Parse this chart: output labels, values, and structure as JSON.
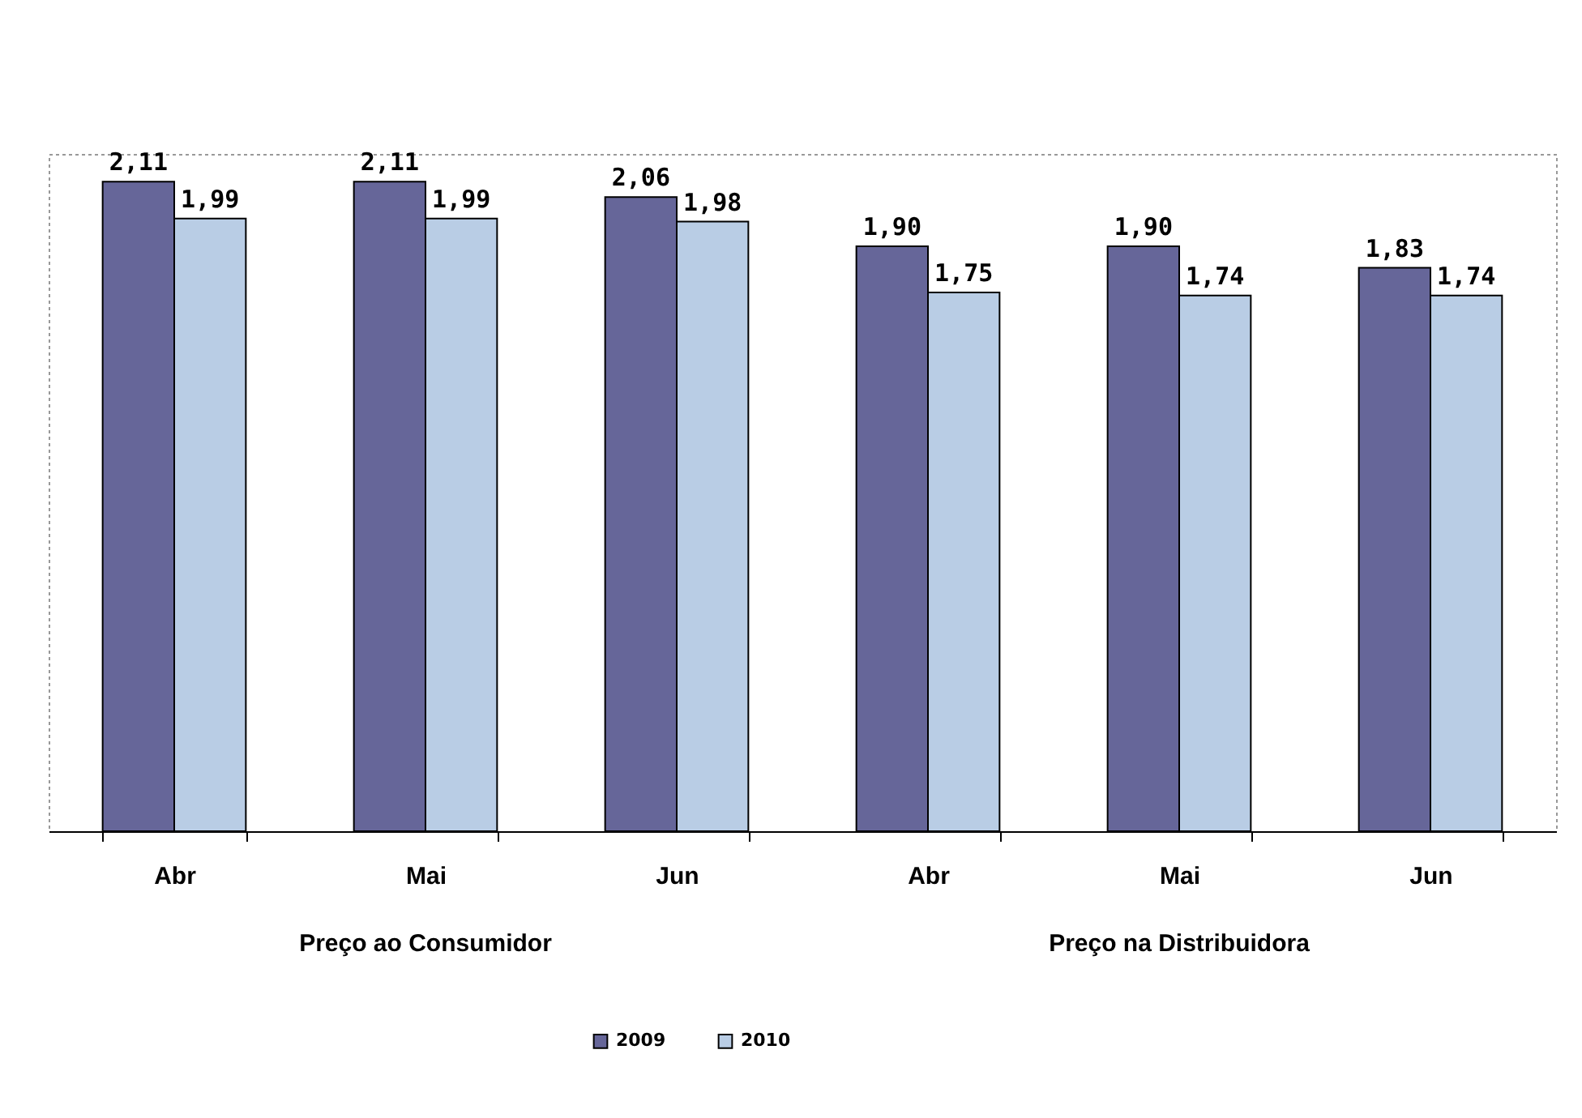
{
  "chart_data": {
    "type": "bar",
    "categories": [
      "Abr",
      "Mai",
      "Jun",
      "Abr",
      "Mai",
      "Jun"
    ],
    "series": [
      {
        "name": "2009",
        "color": "#666699",
        "values": [
          2.11,
          2.11,
          2.06,
          1.9,
          1.9,
          1.83
        ],
        "value_labels": [
          "2,11",
          "2,11",
          "2,06",
          "1,90",
          "1,90",
          "1,83"
        ]
      },
      {
        "name": "2010",
        "color": "#b9cde5",
        "values": [
          1.99,
          1.99,
          1.98,
          1.75,
          1.74,
          1.74
        ],
        "value_labels": [
          "1,99",
          "1,99",
          "1,98",
          "1,75",
          "1,74",
          "1,74"
        ]
      }
    ],
    "grid": false,
    "legend": "bottom",
    "annotations": [
      "Preço ao Consumidor",
      "Preço na Distribuidora"
    ]
  }
}
